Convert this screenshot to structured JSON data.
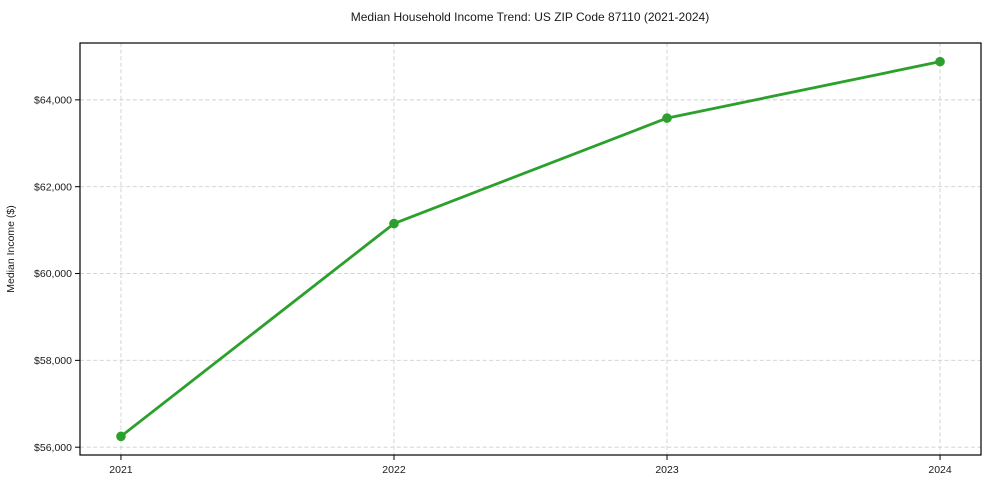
{
  "page": {
    "background": "#ffffff"
  },
  "chart_data": {
    "type": "line",
    "title": "Median Household Income Trend: US ZIP Code 87110 (2021-2024)",
    "xlabel": "",
    "ylabel": "Median Income ($)",
    "categories": [
      "2021",
      "2022",
      "2023",
      "2024"
    ],
    "values": [
      56250,
      61150,
      63580,
      64880
    ],
    "ylim": [
      55820,
      65310
    ],
    "ytick_values": [
      56000,
      58000,
      60000,
      62000,
      64000
    ],
    "ytick_labels": [
      "$56,000",
      "$58,000",
      "$60,000",
      "$62,000",
      "$64,000"
    ],
    "grid": "dashed",
    "legend": "none",
    "marker": "circle",
    "colors": {
      "line": "#2ca02c",
      "marker": "#2ca02c",
      "grid": "#cfcfcf",
      "axis": "#000000",
      "text": "#1a1a1a",
      "background": "#ffffff"
    }
  }
}
